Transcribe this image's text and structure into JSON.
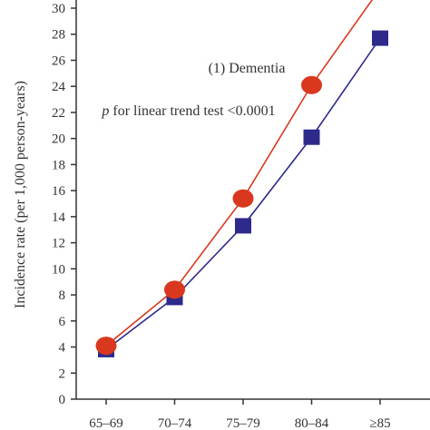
{
  "chart_data": {
    "type": "line",
    "title": "",
    "xlabel": "",
    "ylabel": "Incidence rate (per 1,000 person-years)",
    "categories": [
      "65–69",
      "70–74",
      "75–79",
      "80–84",
      "≥85"
    ],
    "ylim": [
      0,
      30
    ],
    "yticks": [
      0,
      2,
      4,
      6,
      8,
      10,
      12,
      14,
      16,
      18,
      20,
      22,
      24,
      26,
      28,
      30
    ],
    "grid": false,
    "series": [
      {
        "marker": "circle",
        "color": "#d9381e",
        "values": [
          4.1,
          8.4,
          15.4,
          24.1,
          31.5
        ]
      },
      {
        "marker": "square",
        "color": "#2e2a8c",
        "values": [
          3.8,
          7.8,
          13.3,
          20.1,
          27.7
        ]
      }
    ],
    "annotations": {
      "label": "(1) Dementia",
      "trend_p": "p",
      "trend_text": " for linear trend test <0.0001"
    }
  }
}
